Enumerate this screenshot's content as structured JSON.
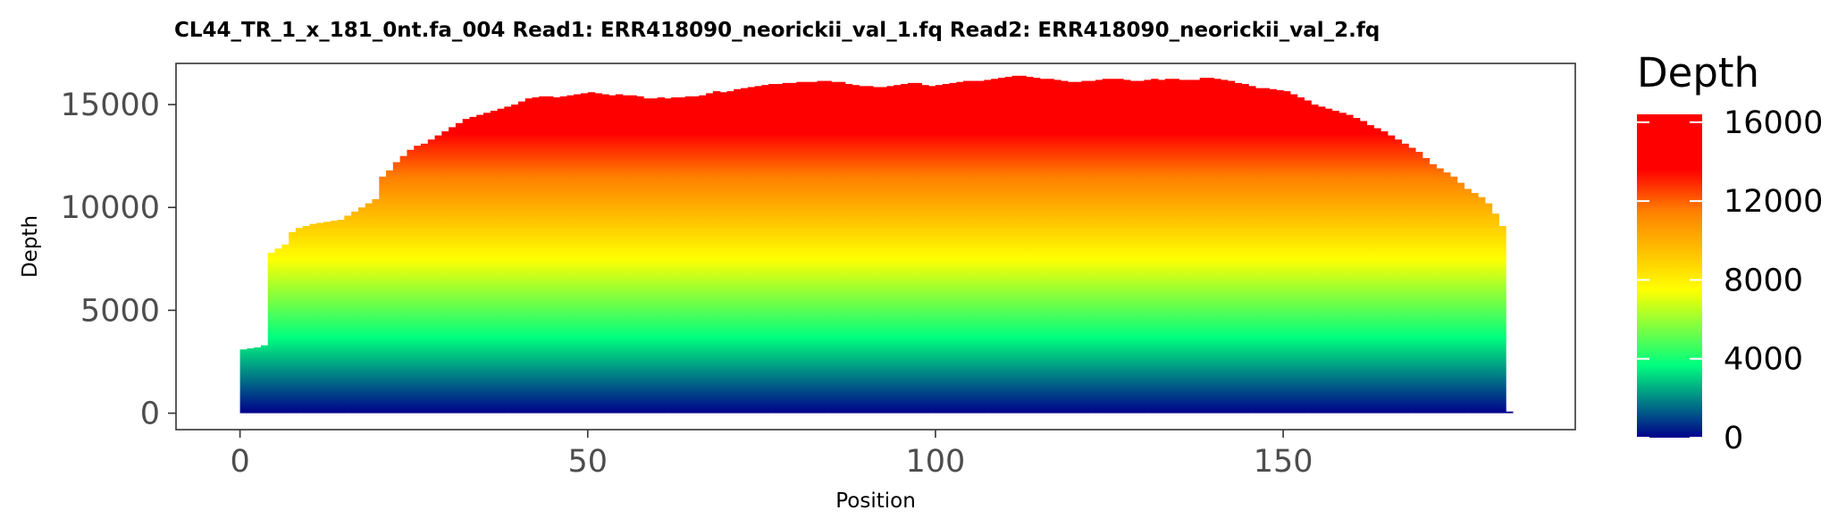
{
  "chart_data": {
    "type": "area",
    "title": "CL44_TR_1_x_181_0nt.fa_004   Read1: ERR418090_neorickii_val_1.fq   Read2: ERR418090_neorickii_val_2.fq",
    "xlabel": "Position",
    "ylabel": "Depth",
    "xlim": [
      -9.2,
      192
    ],
    "ylim": [
      -800,
      17000
    ],
    "x_ticks": [
      0,
      50,
      100,
      150
    ],
    "y_ticks": [
      0,
      5000,
      10000,
      15000
    ],
    "grid": false,
    "series": [
      {
        "x": [
          0,
          1,
          2,
          3,
          4,
          5,
          6,
          7,
          8,
          9,
          10,
          11,
          12,
          13,
          14,
          15,
          16,
          17,
          18,
          19,
          20,
          21,
          22,
          23,
          24,
          25,
          26,
          27,
          28,
          29,
          30,
          31,
          32,
          33,
          34,
          35,
          36,
          37,
          38,
          39,
          40,
          41,
          42,
          43,
          44,
          45,
          46,
          47,
          48,
          49,
          50,
          51,
          52,
          53,
          54,
          55,
          56,
          57,
          58,
          59,
          60,
          61,
          62,
          63,
          64,
          65,
          66,
          67,
          68,
          69,
          70,
          71,
          72,
          73,
          74,
          75,
          76,
          77,
          78,
          79,
          80,
          81,
          82,
          83,
          84,
          85,
          86,
          87,
          88,
          89,
          90,
          91,
          92,
          93,
          94,
          95,
          96,
          97,
          98,
          99,
          100,
          101,
          102,
          103,
          104,
          105,
          106,
          107,
          108,
          109,
          110,
          111,
          112,
          113,
          114,
          115,
          116,
          117,
          118,
          119,
          120,
          121,
          122,
          123,
          124,
          125,
          126,
          127,
          128,
          129,
          130,
          131,
          132,
          133,
          134,
          135,
          136,
          137,
          138,
          139,
          140,
          141,
          142,
          143,
          144,
          145,
          146,
          147,
          148,
          149,
          150,
          151,
          152,
          153,
          154,
          155,
          156,
          157,
          158,
          159,
          160,
          161,
          162,
          163,
          164,
          165,
          166,
          167,
          168,
          169,
          170,
          171,
          172,
          173,
          174,
          175,
          176,
          177,
          178,
          179,
          180,
          181,
          182
        ],
        "y": [
          3100,
          3150,
          3200,
          3300,
          7800,
          8000,
          8200,
          8800,
          9000,
          9100,
          9200,
          9250,
          9300,
          9350,
          9400,
          9600,
          9800,
          10000,
          10200,
          10400,
          11500,
          11800,
          12200,
          12500,
          12800,
          13000,
          13100,
          13300,
          13500,
          13700,
          13900,
          14100,
          14300,
          14400,
          14500,
          14600,
          14700,
          14800,
          14900,
          15000,
          15150,
          15300,
          15350,
          15400,
          15400,
          15350,
          15400,
          15450,
          15500,
          15550,
          15600,
          15550,
          15500,
          15450,
          15500,
          15450,
          15450,
          15400,
          15300,
          15300,
          15350,
          15300,
          15350,
          15350,
          15400,
          15400,
          15450,
          15550,
          15650,
          15600,
          15650,
          15750,
          15800,
          15850,
          15900,
          15950,
          16000,
          16000,
          16050,
          16050,
          16100,
          16100,
          16100,
          16150,
          16150,
          16100,
          16100,
          16000,
          15950,
          15900,
          15900,
          15850,
          15850,
          15900,
          15950,
          16000,
          16050,
          16050,
          15950,
          15900,
          15950,
          16000,
          16050,
          16100,
          16150,
          16150,
          16150,
          16200,
          16250,
          16300,
          16350,
          16400,
          16400,
          16350,
          16300,
          16250,
          16250,
          16200,
          16150,
          16100,
          16100,
          16150,
          16150,
          16200,
          16250,
          16250,
          16250,
          16200,
          16150,
          16150,
          16200,
          16250,
          16200,
          16250,
          16250,
          16200,
          16200,
          16200,
          16300,
          16300,
          16250,
          16200,
          16150,
          16050,
          16000,
          15900,
          15800,
          15800,
          15750,
          15700,
          15650,
          15500,
          15350,
          15200,
          15000,
          14900,
          14800,
          14700,
          14600,
          14500,
          14350,
          14200,
          14000,
          13850,
          13700,
          13500,
          13300,
          13100,
          12900,
          12700,
          12400,
          12100,
          11900,
          11700,
          11500,
          11200,
          10900,
          10700,
          10500,
          10200,
          9700,
          9100,
          80
        ]
      }
    ],
    "legend": {
      "title": "Depth",
      "position": "right",
      "ticks": [
        0,
        4000,
        8000,
        12000,
        16000
      ],
      "range": [
        0,
        16400
      ]
    },
    "colors": {
      "gradient": [
        {
          "value": 0,
          "color": "#00008b"
        },
        {
          "value": 3700,
          "color": "#00ff7f"
        },
        {
          "value": 7500,
          "color": "#ffff00"
        },
        {
          "value": 11500,
          "color": "#ff7f00"
        },
        {
          "value": 13600,
          "color": "#ff0000"
        },
        {
          "value": 16400,
          "color": "#ff0000"
        }
      ],
      "axis_text": "#4d4d4d",
      "panel_border": "#333333"
    }
  }
}
